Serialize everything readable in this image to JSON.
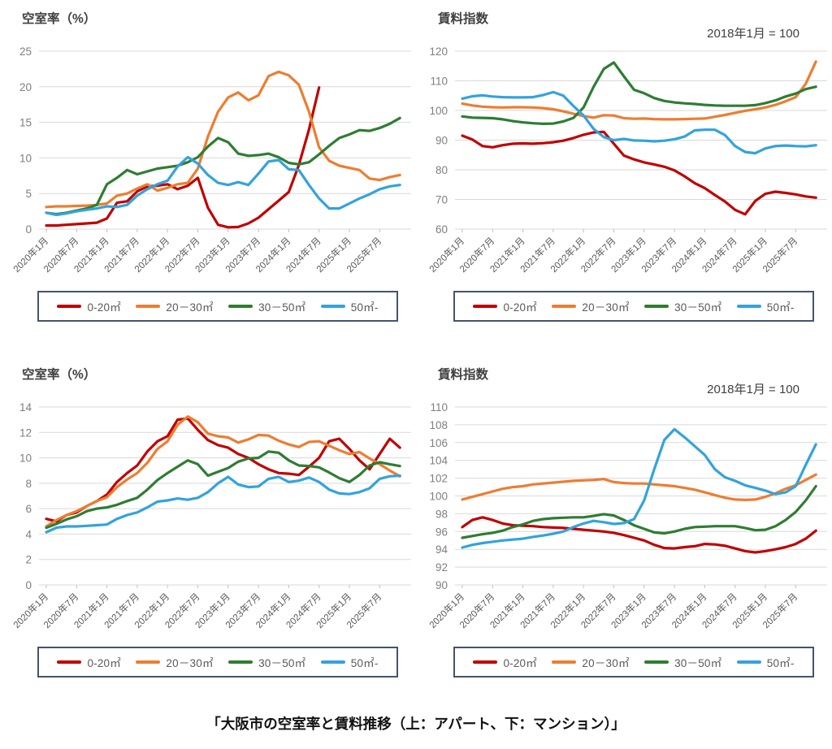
{
  "page": {
    "background": "#ffffff",
    "caption": "「大阪市の空室率と賃料推移（上：アパート、下：マンション）」"
  },
  "colors": {
    "grid": "#d9d9d9",
    "tick": "#bfbfbf",
    "axis_label": "#7f7f7f",
    "x_label": "#595959",
    "title": "#404040",
    "legend_border": "#44546A",
    "series_red": "#C00000",
    "series_orange": "#ED7D31",
    "series_green": "#2E7D32",
    "series_blue": "#33A3DC"
  },
  "x_labels": [
    "2020年1月",
    "2020年7月",
    "2021年1月",
    "2021年7月",
    "2022年1月",
    "2022年7月",
    "2023年1月",
    "2023年7月",
    "2024年1月",
    "2024年7月",
    "2025年1月",
    "2025年7月"
  ],
  "points_per_tick_interval": 3,
  "chart_data": [
    {
      "type": "line",
      "id": "apartment-vacancy",
      "title": "空室率（%）",
      "annotation": "",
      "ylabel": "空室率（%）",
      "ylim": [
        0,
        25
      ],
      "yticks": [
        0,
        5,
        10,
        15,
        20,
        25
      ],
      "grid": true,
      "legend_position": "bottom",
      "x_tick_labels": [
        "2020年1月",
        "2020年7月",
        "2021年1月",
        "2021年7月",
        "2022年1月",
        "2022年7月",
        "2023年1月",
        "2023年7月",
        "2024年1月",
        "2024年7月",
        "2025年1月",
        "2025年7月"
      ],
      "series": [
        {
          "name": "0-20㎡",
          "color": "#C00000",
          "values": [
            0.5,
            0.5,
            0.6,
            0.7,
            0.8,
            0.9,
            1.5,
            3.7,
            3.9,
            5.3,
            6.0,
            6.1,
            6.3,
            5.6,
            6.1,
            7.2,
            3.0,
            0.6,
            0.25,
            0.3,
            0.8,
            1.6,
            2.8,
            4.0,
            5.2,
            9.0,
            14.0,
            19.9,
            null,
            null,
            null,
            null,
            null,
            null,
            null,
            null
          ]
        },
        {
          "name": "20－30㎡",
          "color": "#ED7D31",
          "values": [
            3.1,
            3.2,
            3.2,
            3.25,
            3.3,
            3.4,
            3.6,
            4.7,
            5.0,
            5.7,
            6.3,
            5.4,
            5.8,
            6.3,
            6.5,
            8.5,
            13.0,
            16.5,
            18.5,
            19.2,
            18.1,
            18.8,
            21.5,
            22.1,
            21.6,
            20.3,
            16.5,
            11.5,
            9.6,
            8.9,
            8.6,
            8.3,
            7.1,
            6.9,
            7.3,
            7.6
          ]
        },
        {
          "name": "30－50㎡",
          "color": "#2E7D32",
          "values": [
            2.3,
            2.1,
            2.3,
            2.6,
            2.9,
            3.4,
            6.3,
            7.2,
            8.3,
            7.7,
            8.1,
            8.5,
            8.7,
            8.9,
            9.4,
            10.1,
            11.6,
            12.8,
            12.2,
            10.6,
            10.3,
            10.4,
            10.6,
            10.1,
            9.3,
            9.1,
            9.4,
            10.5,
            11.7,
            12.8,
            13.3,
            13.9,
            13.8,
            14.2,
            14.8,
            15.6
          ]
        },
        {
          "name": "50㎡-",
          "color": "#33A3DC",
          "values": [
            2.3,
            2.0,
            2.2,
            2.5,
            2.7,
            2.9,
            3.2,
            3.1,
            3.4,
            4.7,
            5.6,
            6.3,
            6.8,
            8.8,
            10.1,
            9.2,
            7.6,
            6.5,
            6.2,
            6.6,
            6.2,
            7.8,
            9.5,
            9.7,
            8.4,
            8.3,
            6.2,
            4.3,
            2.9,
            2.9,
            3.6,
            4.3,
            4.9,
            5.6,
            6.0,
            6.2
          ]
        }
      ]
    },
    {
      "type": "line",
      "id": "apartment-rent-index",
      "title": "賃料指数",
      "annotation": "2018年1月 = 100",
      "ylabel": "賃料指数",
      "ylim": [
        60,
        120
      ],
      "yticks": [
        60,
        70,
        80,
        90,
        100,
        110,
        120
      ],
      "grid": true,
      "legend_position": "bottom",
      "x_tick_labels": [
        "2020年1月",
        "2020年7月",
        "2021年1月",
        "2021年7月",
        "2022年1月",
        "2022年7月",
        "2023年1月",
        "2023年7月",
        "2024年1月",
        "2024年7月",
        "2025年1月",
        "2025年7月"
      ],
      "series": [
        {
          "name": "0-20㎡",
          "color": "#C00000",
          "values": [
            91.5,
            90.2,
            88.0,
            87.6,
            88.3,
            88.8,
            88.9,
            88.8,
            89.0,
            89.3,
            89.8,
            90.7,
            91.8,
            92.6,
            92.8,
            88.8,
            84.8,
            83.5,
            82.5,
            81.8,
            81.0,
            79.8,
            77.8,
            75.5,
            73.8,
            71.5,
            69.3,
            66.5,
            65.0,
            69.5,
            71.9,
            72.6,
            72.2,
            71.7,
            71.0,
            70.6
          ]
        },
        {
          "name": "20－30㎡",
          "color": "#ED7D31",
          "values": [
            102.3,
            101.7,
            101.3,
            101.1,
            101.0,
            101.1,
            101.1,
            101.0,
            100.8,
            100.4,
            99.7,
            98.9,
            98.1,
            97.6,
            98.4,
            98.3,
            97.4,
            97.2,
            97.3,
            97.1,
            97.0,
            97.0,
            97.1,
            97.2,
            97.3,
            97.9,
            98.5,
            99.2,
            99.9,
            100.4,
            101.0,
            101.9,
            103.1,
            104.5,
            109.0,
            116.5
          ]
        },
        {
          "name": "30－50㎡",
          "color": "#2E7D32",
          "values": [
            98.0,
            97.6,
            97.5,
            97.4,
            97.0,
            96.4,
            96.0,
            95.7,
            95.5,
            95.6,
            96.3,
            97.5,
            101.0,
            108.0,
            114.0,
            116.2,
            111.5,
            107.0,
            105.8,
            104.2,
            103.2,
            102.7,
            102.4,
            102.2,
            101.9,
            101.7,
            101.6,
            101.6,
            101.6,
            101.8,
            102.5,
            103.4,
            104.7,
            105.7,
            107.2,
            108.0
          ]
        },
        {
          "name": "50㎡-",
          "color": "#33A3DC",
          "values": [
            104.0,
            104.8,
            105.1,
            104.7,
            104.5,
            104.4,
            104.4,
            104.5,
            105.2,
            106.2,
            105.0,
            101.5,
            98.3,
            93.8,
            91.0,
            90.0,
            90.4,
            89.9,
            89.8,
            89.6,
            89.8,
            90.3,
            91.2,
            93.3,
            93.5,
            93.5,
            91.7,
            88.0,
            86.0,
            85.6,
            87.2,
            88.0,
            88.2,
            88.0,
            87.9,
            88.3
          ]
        }
      ]
    },
    {
      "type": "line",
      "id": "mansion-vacancy",
      "title": "空室率（%）",
      "annotation": "",
      "ylabel": "空室率（%）",
      "ylim": [
        0,
        14
      ],
      "yticks": [
        0,
        2,
        4,
        6,
        8,
        10,
        12,
        14
      ],
      "grid": true,
      "legend_position": "bottom",
      "x_tick_labels": [
        "2020年1月",
        "2020年7月",
        "2021年1月",
        "2021年7月",
        "2022年1月",
        "2022年7月",
        "2023年1月",
        "2023年7月",
        "2024年1月",
        "2024年7月",
        "2025年1月",
        "2025年7月"
      ],
      "series": [
        {
          "name": "0-20㎡",
          "color": "#C00000",
          "values": [
            5.2,
            5.0,
            5.5,
            5.7,
            6.2,
            6.6,
            7.1,
            8.1,
            8.8,
            9.4,
            10.5,
            11.3,
            11.7,
            13.0,
            13.1,
            12.2,
            11.4,
            11.0,
            10.8,
            10.3,
            10.0,
            9.5,
            9.1,
            8.8,
            8.75,
            8.65,
            9.3,
            10.0,
            11.3,
            11.5,
            10.7,
            9.8,
            9.1,
            10.3,
            11.5,
            10.8
          ]
        },
        {
          "name": "20－30㎡",
          "color": "#ED7D31",
          "values": [
            4.6,
            5.1,
            5.5,
            5.8,
            6.2,
            6.6,
            6.9,
            7.7,
            8.3,
            8.8,
            9.6,
            10.7,
            11.3,
            12.6,
            13.25,
            12.8,
            11.9,
            11.7,
            11.6,
            11.2,
            11.45,
            11.8,
            11.75,
            11.35,
            11.05,
            10.85,
            11.25,
            11.3,
            10.95,
            10.6,
            10.3,
            10.45,
            9.95,
            9.5,
            9.0,
            8.55
          ]
        },
        {
          "name": "30－50㎡",
          "color": "#2E7D32",
          "values": [
            4.5,
            4.8,
            5.15,
            5.4,
            5.8,
            6.0,
            6.1,
            6.3,
            6.6,
            6.85,
            7.5,
            8.25,
            8.8,
            9.3,
            9.8,
            9.5,
            8.6,
            8.9,
            9.2,
            9.7,
            9.95,
            10.0,
            10.5,
            10.4,
            9.8,
            9.4,
            9.35,
            9.25,
            8.85,
            8.4,
            8.1,
            8.65,
            9.4,
            9.65,
            9.5,
            9.35
          ]
        },
        {
          "name": "50㎡-",
          "color": "#33A3DC",
          "values": [
            4.15,
            4.5,
            4.6,
            4.6,
            4.65,
            4.7,
            4.75,
            5.2,
            5.5,
            5.7,
            6.1,
            6.55,
            6.65,
            6.8,
            6.7,
            6.85,
            7.3,
            8.0,
            8.5,
            7.9,
            7.7,
            7.75,
            8.35,
            8.5,
            8.1,
            8.2,
            8.45,
            8.1,
            7.5,
            7.2,
            7.15,
            7.3,
            7.6,
            8.35,
            8.55,
            8.6
          ]
        }
      ]
    },
    {
      "type": "line",
      "id": "mansion-rent-index",
      "title": "賃料指数",
      "annotation": "2018年1月 = 100",
      "ylabel": "賃料指数",
      "ylim": [
        90,
        110
      ],
      "yticks": [
        90,
        92,
        94,
        96,
        98,
        100,
        102,
        104,
        106,
        108,
        110
      ],
      "grid": true,
      "legend_position": "bottom",
      "x_tick_labels": [
        "2020年1月",
        "2020年7月",
        "2021年1月",
        "2021年7月",
        "2022年1月",
        "2022年7月",
        "2023年1月",
        "2023年7月",
        "2024年1月",
        "2024年7月",
        "2025年1月",
        "2025年7月"
      ],
      "series": [
        {
          "name": "0-20㎡",
          "color": "#C00000",
          "values": [
            96.5,
            97.3,
            97.6,
            97.3,
            96.9,
            96.7,
            96.65,
            96.6,
            96.5,
            96.45,
            96.4,
            96.3,
            96.2,
            96.1,
            96.0,
            95.85,
            95.6,
            95.3,
            95.0,
            94.5,
            94.15,
            94.1,
            94.25,
            94.35,
            94.6,
            94.55,
            94.4,
            94.1,
            93.8,
            93.65,
            93.8,
            94.0,
            94.25,
            94.6,
            95.2,
            96.1
          ]
        },
        {
          "name": "20－30㎡",
          "color": "#ED7D31",
          "values": [
            99.6,
            99.9,
            100.2,
            100.5,
            100.8,
            101.0,
            101.1,
            101.3,
            101.4,
            101.5,
            101.6,
            101.7,
            101.75,
            101.8,
            101.9,
            101.55,
            101.45,
            101.4,
            101.4,
            101.3,
            101.2,
            101.1,
            100.9,
            100.7,
            100.4,
            100.1,
            99.8,
            99.6,
            99.55,
            99.6,
            99.9,
            100.3,
            100.8,
            101.2,
            101.8,
            102.4
          ]
        },
        {
          "name": "30－50㎡",
          "color": "#2E7D32",
          "values": [
            95.3,
            95.5,
            95.7,
            95.85,
            96.1,
            96.5,
            96.8,
            97.2,
            97.4,
            97.5,
            97.55,
            97.6,
            97.6,
            97.75,
            97.95,
            97.8,
            97.3,
            96.7,
            96.3,
            95.9,
            95.8,
            96.0,
            96.3,
            96.5,
            96.55,
            96.6,
            96.6,
            96.6,
            96.4,
            96.15,
            96.2,
            96.6,
            97.3,
            98.2,
            99.5,
            101.1
          ]
        },
        {
          "name": "50㎡-",
          "color": "#33A3DC",
          "values": [
            94.2,
            94.5,
            94.7,
            94.85,
            95.0,
            95.1,
            95.2,
            95.4,
            95.55,
            95.75,
            96.0,
            96.5,
            96.9,
            97.2,
            97.05,
            96.85,
            96.95,
            97.4,
            99.5,
            103.0,
            106.3,
            107.5,
            106.6,
            105.6,
            104.6,
            103.0,
            102.1,
            101.7,
            101.2,
            100.9,
            100.6,
            100.2,
            100.4,
            101.1,
            103.5,
            105.8
          ]
        }
      ]
    }
  ]
}
